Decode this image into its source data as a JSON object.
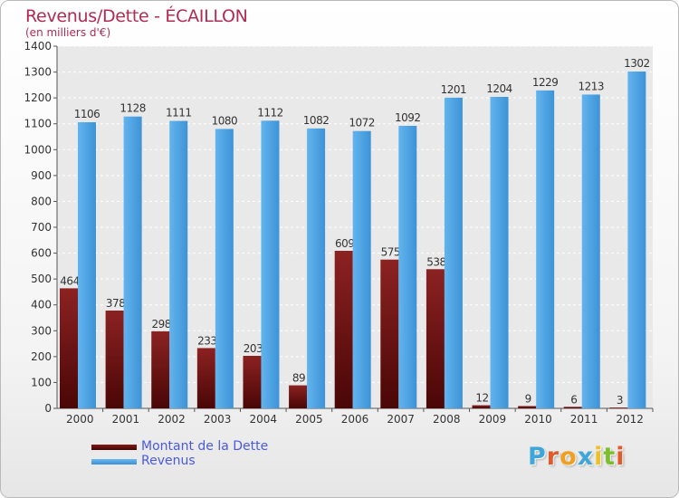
{
  "chart_data": {
    "type": "bar",
    "title": "Revenus/Dette - ÉCAILLON",
    "subtitle": "(en milliers d'€)",
    "xlabel": "",
    "ylabel": "",
    "ylim": [
      0,
      1400
    ],
    "yticks": [
      0,
      100,
      200,
      300,
      400,
      500,
      600,
      700,
      800,
      900,
      1000,
      1100,
      1200,
      1300,
      1400
    ],
    "grid": true,
    "legend_position": "bottom-left",
    "categories": [
      "2000",
      "2001",
      "2002",
      "2003",
      "2004",
      "2005",
      "2006",
      "2007",
      "2008",
      "2009",
      "2010",
      "2011",
      "2012"
    ],
    "series": [
      {
        "name": "Montant de la Dette",
        "color": "#7a1010",
        "values": [
          464,
          378,
          298,
          233,
          203,
          89,
          609,
          575,
          538,
          12,
          9,
          6,
          3
        ]
      },
      {
        "name": "Revenus",
        "color": "#4da6e6",
        "values": [
          1106,
          1128,
          1111,
          1080,
          1112,
          1082,
          1072,
          1092,
          1201,
          1204,
          1229,
          1213,
          1302
        ]
      }
    ]
  },
  "legend": {
    "items": [
      {
        "label": "Montant de la Dette",
        "color": "#6e0b0b"
      },
      {
        "label": "Revenus",
        "color": "#4da6e6"
      }
    ]
  },
  "logo": {
    "letters": [
      "P",
      "r",
      "o",
      "x",
      "i",
      "t",
      "i"
    ],
    "colors": [
      "#3ea6d8",
      "#e05a2a",
      "#f0a020",
      "#3ea6d8",
      "#f0c020",
      "#7cbf2c",
      "#e05a2a"
    ]
  }
}
